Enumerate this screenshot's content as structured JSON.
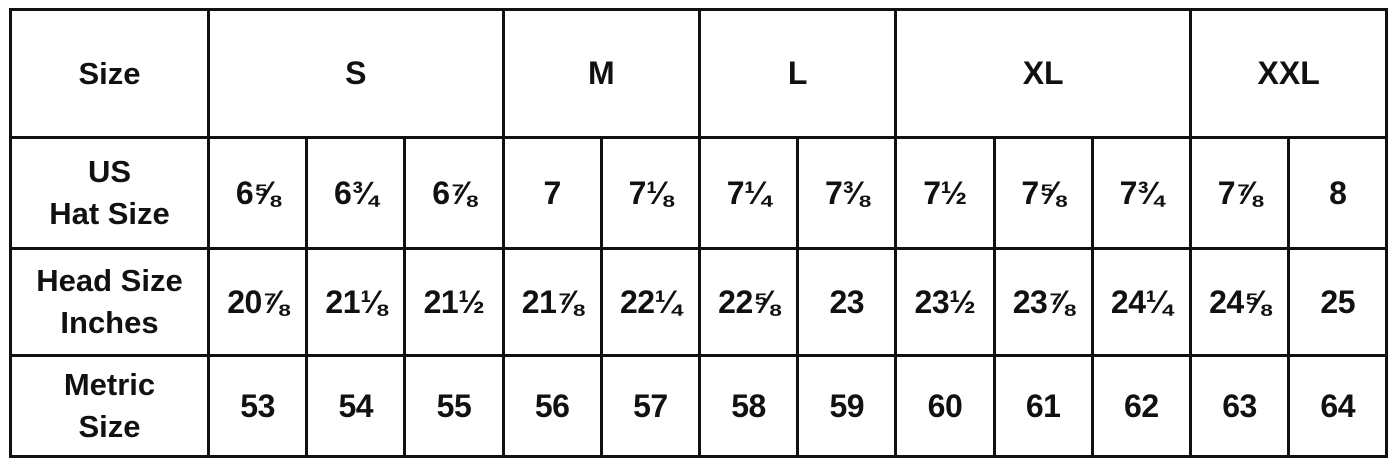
{
  "table": {
    "header_label": "Size",
    "sizes": [
      {
        "label": "S",
        "span": 3
      },
      {
        "label": "M",
        "span": 2
      },
      {
        "label": "L",
        "span": 2
      },
      {
        "label": "XL",
        "span": 3
      },
      {
        "label": "XXL",
        "span": 2
      }
    ],
    "rows": [
      {
        "label_line1": "US",
        "label_line2": "Hat Size",
        "values": [
          "6⅝",
          "6¾",
          "6⅞",
          "7",
          "7⅛",
          "7¼",
          "7⅜",
          "7½",
          "7⅝",
          "7¾",
          "7⅞",
          "8"
        ]
      },
      {
        "label_line1": "Head Size",
        "label_line2": "Inches",
        "values": [
          "20⅞",
          "21⅛",
          "21½",
          "21⅞",
          "22¼",
          "22⅝",
          "23",
          "23½",
          "23⅞",
          "24¼",
          "24⅝",
          "25"
        ]
      },
      {
        "label_line1": "Metric",
        "label_line2": "Size",
        "values": [
          "53",
          "54",
          "55",
          "56",
          "57",
          "58",
          "59",
          "60",
          "61",
          "62",
          "63",
          "64"
        ]
      }
    ]
  }
}
